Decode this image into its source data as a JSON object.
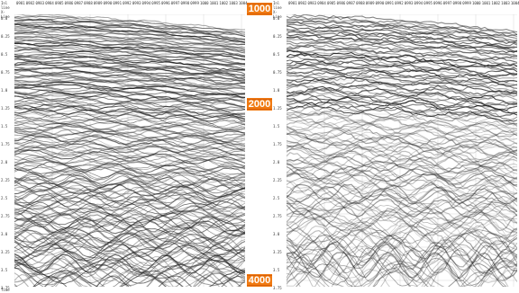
{
  "left_panel": {
    "header_label": "Inl line\nX-Line",
    "footer_label": "Time",
    "trace_labels": [
      "0981",
      "0982",
      "0983",
      "0984",
      "0985",
      "0986",
      "0987",
      "0988",
      "0989",
      "0990",
      "0991",
      "0992",
      "0993",
      "0994",
      "0995",
      "0996",
      "0997",
      "0998",
      "0999",
      "1000",
      "1001",
      "1002",
      "1003",
      "1004"
    ]
  },
  "right_panel": {
    "header_label": "Inl line\nX-Line",
    "trace_labels": [
      "0981",
      "0982",
      "0983",
      "0984",
      "0985",
      "0986",
      "0987",
      "0988",
      "0989",
      "0990",
      "0991",
      "0992",
      "0993",
      "0994",
      "0995",
      "0996",
      "0997",
      "0998",
      "0999",
      "1000",
      "1001",
      "1002",
      "1003",
      "1004"
    ]
  },
  "time_axis": [
    "0.0",
    "0.25",
    "0.5",
    "0.75",
    "1.0",
    "1.25",
    "1.5",
    "1.75",
    "2.0",
    "2.25",
    "2.5",
    "2.75",
    "3.0",
    "3.25",
    "3.5",
    "3.75"
  ],
  "depth_markers": [
    {
      "label": "1000",
      "top_fraction": 0.03
    },
    {
      "label": "2000",
      "top_fraction": 0.357
    },
    {
      "label": "4000",
      "top_fraction": 0.957
    }
  ],
  "colors": {
    "marker": "#f07a12",
    "background": "#ffffff"
  }
}
